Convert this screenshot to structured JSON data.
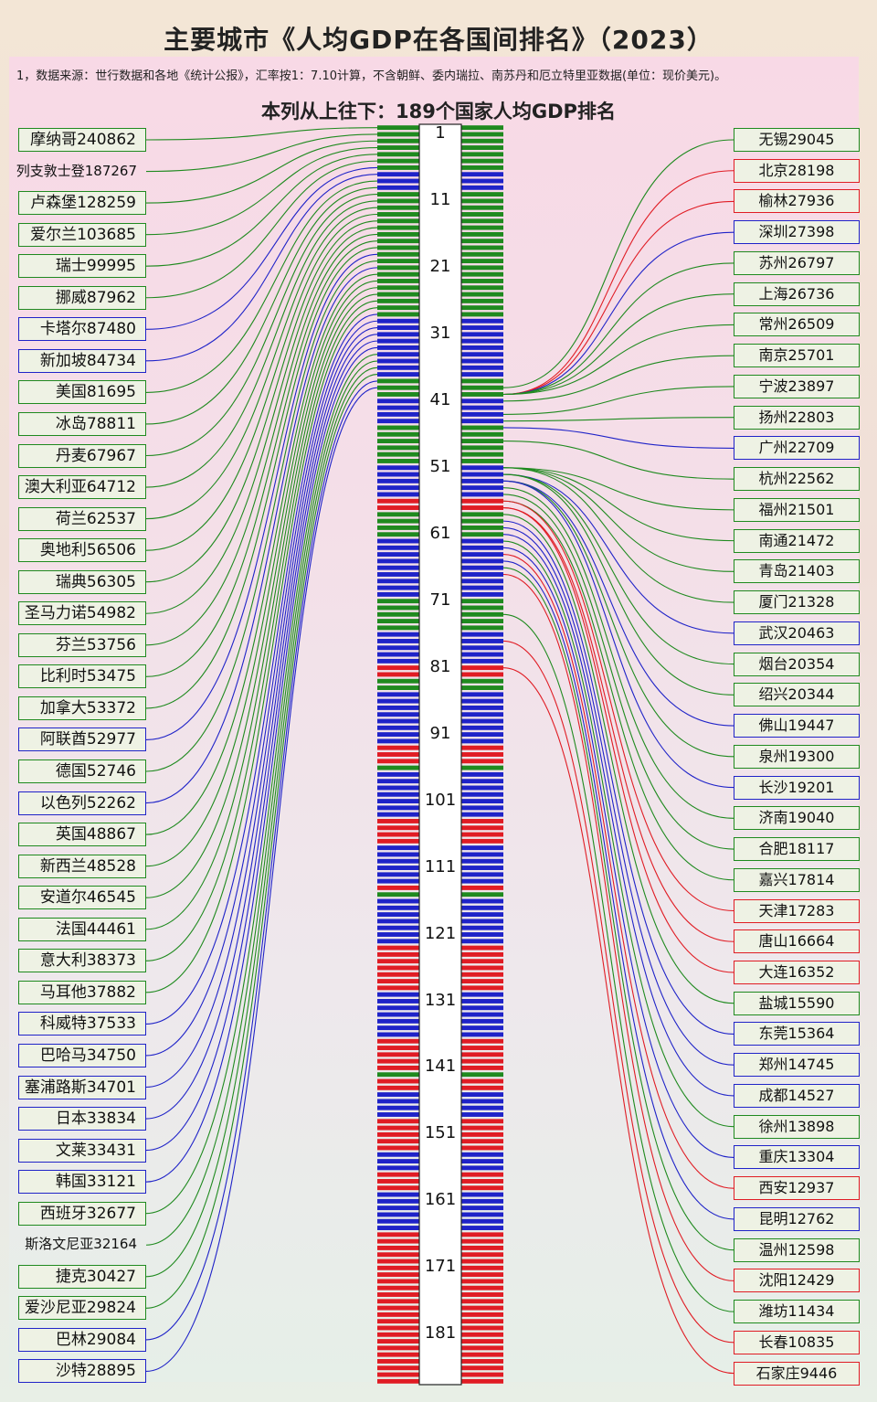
{
  "title": "主要城市《人均GDP在各国间排名》（2023）",
  "source_note": "1，数据来源：世行数据和各地《统计公报》，汇率按1：7.10计算，不含朝鲜、委内瑞拉、南苏丹和厄立特里亚数据(单位：现价美元)。",
  "column_caption": "本列从上往下：189个国家人均GDP排名",
  "colors": {
    "green": "#1f8a1f",
    "blue": "#1f23c8",
    "red": "#e01c24",
    "stripe_gap": "#ffffff"
  },
  "chart_data": {
    "type": "ranking-connector",
    "total_ranks": 189,
    "rank_ticks": [
      1,
      11,
      21,
      31,
      41,
      51,
      61,
      71,
      81,
      91,
      101,
      111,
      121,
      131,
      141,
      151,
      161,
      171,
      181
    ],
    "rank_colors": "GGGGGGGBBBGGGGGGGGGGGGGGGGGGGBBBBBBBBBGGGBBBBGGGGGGBBBBBRRGGGGBBBBBBBBBGGGGGBBBBBRRGGBBBBBBBBRRRGBBBBBBBRRRRBBBBBBRGBBBBBBBRRRRRRRBBBBBBBRRRRRGRRBBBBRRRRRBBBRRRBBBBBBRRRRRRRRRRRRRRRRRRRRRRRRRRRRRRRRRR",
    "countries": [
      {
        "label": "摩纳哥240862",
        "value": 240862,
        "rank": 1,
        "color": "green"
      },
      {
        "label": "列支敦士登187267",
        "value": 187267,
        "rank": 2,
        "color": "green"
      },
      {
        "label": "卢森堡128259",
        "value": 128259,
        "rank": 3,
        "color": "green"
      },
      {
        "label": "爱尔兰103685",
        "value": 103685,
        "rank": 4,
        "color": "green"
      },
      {
        "label": "瑞士99995",
        "value": 99995,
        "rank": 5,
        "color": "green"
      },
      {
        "label": "挪威87962",
        "value": 87962,
        "rank": 6,
        "color": "green"
      },
      {
        "label": "卡塔尔87480",
        "value": 87480,
        "rank": 7,
        "color": "blue"
      },
      {
        "label": "新加坡84734",
        "value": 84734,
        "rank": 8,
        "color": "blue"
      },
      {
        "label": "美国81695",
        "value": 81695,
        "rank": 9,
        "color": "green"
      },
      {
        "label": "冰岛78811",
        "value": 78811,
        "rank": 10,
        "color": "green"
      },
      {
        "label": "丹麦67967",
        "value": 67967,
        "rank": 11,
        "color": "green"
      },
      {
        "label": "澳大利亚64712",
        "value": 64712,
        "rank": 12,
        "color": "green"
      },
      {
        "label": "荷兰62537",
        "value": 62537,
        "rank": 13,
        "color": "green"
      },
      {
        "label": "奥地利56506",
        "value": 56506,
        "rank": 14,
        "color": "green"
      },
      {
        "label": "瑞典56305",
        "value": 56305,
        "rank": 15,
        "color": "green"
      },
      {
        "label": "圣马力诺54982",
        "value": 54982,
        "rank": 16,
        "color": "green"
      },
      {
        "label": "芬兰53756",
        "value": 53756,
        "rank": 17,
        "color": "green"
      },
      {
        "label": "比利时53475",
        "value": 53475,
        "rank": 18,
        "color": "green"
      },
      {
        "label": "加拿大53372",
        "value": 53372,
        "rank": 19,
        "color": "green"
      },
      {
        "label": "阿联酋52977",
        "value": 52977,
        "rank": 20,
        "color": "blue"
      },
      {
        "label": "德国52746",
        "value": 52746,
        "rank": 21,
        "color": "green"
      },
      {
        "label": "以色列52262",
        "value": 52262,
        "rank": 22,
        "color": "blue"
      },
      {
        "label": "英国48867",
        "value": 48867,
        "rank": 23,
        "color": "green"
      },
      {
        "label": "新西兰48528",
        "value": 48528,
        "rank": 24,
        "color": "green"
      },
      {
        "label": "安道尔46545",
        "value": 46545,
        "rank": 25,
        "color": "green"
      },
      {
        "label": "法国44461",
        "value": 44461,
        "rank": 26,
        "color": "green"
      },
      {
        "label": "意大利38373",
        "value": 38373,
        "rank": 27,
        "color": "green"
      },
      {
        "label": "马耳他37882",
        "value": 37882,
        "rank": 28,
        "color": "green"
      },
      {
        "label": "科威特37533",
        "value": 37533,
        "rank": 29,
        "color": "blue"
      },
      {
        "label": "巴哈马34750",
        "value": 34750,
        "rank": 30,
        "color": "blue"
      },
      {
        "label": "塞浦路斯34701",
        "value": 34701,
        "rank": 31,
        "color": "blue"
      },
      {
        "label": "日本33834",
        "value": 33834,
        "rank": 32,
        "color": "blue"
      },
      {
        "label": "文莱33431",
        "value": 33431,
        "rank": 33,
        "color": "blue"
      },
      {
        "label": "韩国33121",
        "value": 33121,
        "rank": 34,
        "color": "blue"
      },
      {
        "label": "西班牙32677",
        "value": 32677,
        "rank": 35,
        "color": "green"
      },
      {
        "label": "斯洛文尼亚32164",
        "value": 32164,
        "rank": 36,
        "color": "green"
      },
      {
        "label": "捷克30427",
        "value": 30427,
        "rank": 37,
        "color": "green"
      },
      {
        "label": "爱沙尼亚29824",
        "value": 29824,
        "rank": 38,
        "color": "green"
      },
      {
        "label": "巴林29084",
        "value": 29084,
        "rank": 39,
        "color": "blue"
      },
      {
        "label": "沙特28895",
        "value": 28895,
        "rank": 40,
        "color": "blue"
      }
    ],
    "cities": [
      {
        "label": "无锡29045",
        "value": 29045,
        "rank": 40,
        "color": "green"
      },
      {
        "label": "北京28198",
        "value": 28198,
        "rank": 41,
        "color": "red"
      },
      {
        "label": "榆林27936",
        "value": 27936,
        "rank": 41,
        "color": "red"
      },
      {
        "label": "深圳27398",
        "value": 27398,
        "rank": 41,
        "color": "blue"
      },
      {
        "label": "苏州26797",
        "value": 26797,
        "rank": 41,
        "color": "green"
      },
      {
        "label": "上海26736",
        "value": 26736,
        "rank": 41,
        "color": "green"
      },
      {
        "label": "常州26509",
        "value": 26509,
        "rank": 41,
        "color": "green"
      },
      {
        "label": "南京25701",
        "value": 25701,
        "rank": 42,
        "color": "green"
      },
      {
        "label": "宁波23897",
        "value": 23897,
        "rank": 44,
        "color": "green"
      },
      {
        "label": "扬州22803",
        "value": 22803,
        "rank": 45,
        "color": "green"
      },
      {
        "label": "广州22709",
        "value": 22709,
        "rank": 46,
        "color": "blue"
      },
      {
        "label": "杭州22562",
        "value": 22562,
        "rank": 48,
        "color": "green"
      },
      {
        "label": "福州21501",
        "value": 21501,
        "rank": 52,
        "color": "green"
      },
      {
        "label": "南通21472",
        "value": 21472,
        "rank": 52,
        "color": "green"
      },
      {
        "label": "青岛21403",
        "value": 21403,
        "rank": 52,
        "color": "green"
      },
      {
        "label": "厦门21328",
        "value": 21328,
        "rank": 52,
        "color": "green"
      },
      {
        "label": "武汉20463",
        "value": 20463,
        "rank": 53,
        "color": "blue"
      },
      {
        "label": "烟台20354",
        "value": 20354,
        "rank": 53,
        "color": "green"
      },
      {
        "label": "绍兴20344",
        "value": 20344,
        "rank": 53,
        "color": "green"
      },
      {
        "label": "佛山19447",
        "value": 19447,
        "rank": 54,
        "color": "blue"
      },
      {
        "label": "泉州19300",
        "value": 19300,
        "rank": 54,
        "color": "green"
      },
      {
        "label": "长沙19201",
        "value": 19201,
        "rank": 54,
        "color": "blue"
      },
      {
        "label": "济南19040",
        "value": 19040,
        "rank": 55,
        "color": "green"
      },
      {
        "label": "合肥18117",
        "value": 18117,
        "rank": 56,
        "color": "green"
      },
      {
        "label": "嘉兴17814",
        "value": 17814,
        "rank": 57,
        "color": "green"
      },
      {
        "label": "天津17283",
        "value": 17283,
        "rank": 57,
        "color": "red"
      },
      {
        "label": "唐山16664",
        "value": 16664,
        "rank": 58,
        "color": "red"
      },
      {
        "label": "大连16352",
        "value": 16352,
        "rank": 58,
        "color": "red"
      },
      {
        "label": "盐城15590",
        "value": 15590,
        "rank": 59,
        "color": "green"
      },
      {
        "label": "东莞15364",
        "value": 15364,
        "rank": 60,
        "color": "blue"
      },
      {
        "label": "郑州14745",
        "value": 14745,
        "rank": 61,
        "color": "blue"
      },
      {
        "label": "成都14527",
        "value": 14527,
        "rank": 62,
        "color": "blue"
      },
      {
        "label": "徐州13898",
        "value": 13898,
        "rank": 63,
        "color": "green"
      },
      {
        "label": "重庆13304",
        "value": 13304,
        "rank": 64,
        "color": "blue"
      },
      {
        "label": "西安12937",
        "value": 12937,
        "rank": 65,
        "color": "red"
      },
      {
        "label": "昆明12762",
        "value": 12762,
        "rank": 66,
        "color": "blue"
      },
      {
        "label": "温州12598",
        "value": 12598,
        "rank": 67,
        "color": "green"
      },
      {
        "label": "沈阳12429",
        "value": 12429,
        "rank": 68,
        "color": "red"
      },
      {
        "label": "潍坊11434",
        "value": 11434,
        "rank": 74,
        "color": "green"
      },
      {
        "label": "长春10835",
        "value": 10835,
        "rank": 78,
        "color": "red"
      },
      {
        "label": "石家庄9446",
        "value": 9446,
        "rank": 82,
        "color": "red"
      }
    ]
  }
}
